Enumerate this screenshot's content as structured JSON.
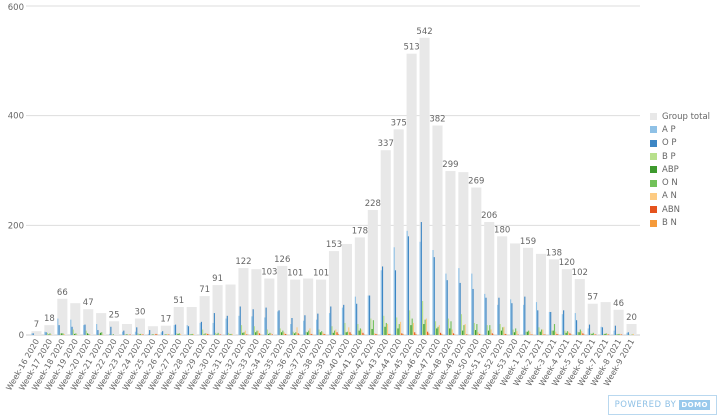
{
  "chart_data": {
    "type": "bar",
    "title": "",
    "xlabel": "",
    "ylabel": "",
    "ylim": [
      0,
      600
    ],
    "yticks": [
      0,
      200,
      400,
      600
    ],
    "grid": true,
    "legend_position": "right",
    "categories": [
      "Week-16 2020",
      "Week-17 2020",
      "Week-18 2020",
      "Week-19 2020",
      "Week-20 2020",
      "Week-21 2020",
      "Week-22 2020",
      "Week-23 2020",
      "Week-24 2020",
      "Week-25 2020",
      "Week-26 2020",
      "Week-27 2020",
      "Week-28 2020",
      "Week-29 2020",
      "Week-30 2020",
      "Week-31 2020",
      "Week-32 2020",
      "Week-33 2020",
      "Week-34 2020",
      "Week-35 2020",
      "Week-36 2020",
      "Week-37 2020",
      "Week-38 2020",
      "Week-39 2020",
      "Week-40 2020",
      "Week-41 2020",
      "Week-42 2020",
      "Week-43 2020",
      "Week-44 2020",
      "Week-45 2020",
      "Week-46 2020",
      "Week-47 2020",
      "Week-48 2020",
      "Week-49 2020",
      "Week-50 2020",
      "Week-51 2020",
      "Week-52 2020",
      "Week-53 2020",
      "Week-1 2021",
      "Week-2 2021",
      "Week-3 2021",
      "Week-4 2021",
      "Week-5 2021",
      "Week-6 2021",
      "Week-7 2021",
      "Week-8 2021",
      "Week-9 2021"
    ],
    "series": [
      {
        "name": "Group total",
        "color": "#e8e8e8",
        "values": [
          7,
          18,
          66,
          58,
          47,
          40,
          25,
          20,
          30,
          16,
          17,
          51,
          51,
          71,
          91,
          92,
          122,
          120,
          103,
          126,
          101,
          103,
          101,
          153,
          166,
          178,
          228,
          337,
          375,
          513,
          542,
          382,
          299,
          297,
          269,
          206,
          180,
          167,
          159,
          148,
          138,
          120,
          102,
          57,
          60,
          46,
          20
        ]
      },
      {
        "name": "A P",
        "color": "#8fc1e6",
        "values": [
          3,
          6,
          30,
          28,
          18,
          20,
          2,
          6,
          6,
          2,
          5,
          18,
          18,
          22,
          22,
          30,
          35,
          34,
          32,
          43,
          20,
          26,
          28,
          40,
          50,
          70,
          72,
          118,
          160,
          190,
          170,
          155,
          112,
          122,
          112,
          75,
          55,
          65,
          55,
          60,
          42,
          38,
          40,
          12,
          15,
          8,
          4
        ]
      },
      {
        "name": "O P",
        "color": "#3d86c4",
        "values": [
          3,
          5,
          18,
          15,
          19,
          9,
          15,
          8,
          14,
          9,
          7,
          19,
          16,
          24,
          40,
          35,
          52,
          47,
          50,
          45,
          31,
          36,
          39,
          52,
          55,
          57,
          72,
          125,
          118,
          180,
          206,
          142,
          100,
          95,
          84,
          68,
          68,
          58,
          70,
          45,
          42,
          45,
          27,
          19,
          14,
          17,
          5
        ]
      },
      {
        "name": "B P",
        "color": "#b8e08c",
        "values": [
          0,
          4,
          3,
          10,
          8,
          2,
          1,
          1,
          3,
          0,
          0,
          3,
          2,
          10,
          4,
          4,
          18,
          16,
          10,
          12,
          6,
          6,
          10,
          16,
          22,
          20,
          30,
          35,
          32,
          45,
          62,
          25,
          30,
          38,
          22,
          18,
          20,
          10,
          6,
          14,
          8,
          8,
          6,
          3,
          2,
          2,
          1
        ]
      },
      {
        "name": "ABP",
        "color": "#3e9a2e",
        "values": [
          0,
          1,
          3,
          2,
          3,
          4,
          1,
          1,
          1,
          1,
          1,
          2,
          1,
          1,
          1,
          1,
          4,
          5,
          2,
          5,
          3,
          5,
          5,
          4,
          5,
          8,
          11,
          15,
          12,
          18,
          20,
          12,
          12,
          8,
          9,
          8,
          8,
          5,
          6,
          6,
          8,
          4,
          5,
          2,
          2,
          1,
          0
        ]
      },
      {
        "name": "O N",
        "color": "#72c159",
        "values": [
          0,
          3,
          3,
          3,
          2,
          5,
          0,
          1,
          2,
          1,
          1,
          3,
          2,
          3,
          4,
          2,
          5,
          8,
          4,
          8,
          5,
          8,
          7,
          8,
          6,
          12,
          27,
          22,
          20,
          30,
          28,
          15,
          25,
          18,
          20,
          18,
          14,
          12,
          8,
          10,
          20,
          7,
          10,
          4,
          3,
          2,
          1
        ]
      },
      {
        "name": "A N",
        "color": "#fdcb82",
        "values": [
          0,
          1,
          2,
          1,
          1,
          1,
          0,
          1,
          2,
          1,
          2,
          2,
          2,
          3,
          2,
          2,
          8,
          8,
          3,
          5,
          14,
          12,
          5,
          10,
          14,
          10,
          3,
          20,
          24,
          22,
          30,
          18,
          10,
          20,
          5,
          10,
          15,
          7,
          6,
          10,
          6,
          6,
          7,
          2,
          2,
          2,
          2
        ]
      },
      {
        "name": "ABN",
        "color": "#e5531e",
        "values": [
          0,
          0,
          0,
          0,
          0,
          0,
          0,
          1,
          1,
          2,
          1,
          0,
          0,
          2,
          1,
          0,
          1,
          3,
          1,
          2,
          3,
          2,
          2,
          5,
          5,
          4,
          2,
          2,
          3,
          5,
          6,
          4,
          3,
          1,
          2,
          3,
          2,
          1,
          1,
          1,
          2,
          3,
          3,
          1,
          1,
          1,
          0
        ]
      },
      {
        "name": "B N",
        "color": "#f59a3a",
        "values": [
          0,
          0,
          0,
          0,
          0,
          0,
          0,
          0,
          0,
          1,
          0,
          0,
          0,
          1,
          0,
          0,
          1,
          1,
          0,
          1,
          1,
          1,
          1,
          2,
          2,
          1,
          1,
          2,
          2,
          2,
          3,
          2,
          1,
          1,
          1,
          1,
          1,
          0,
          1,
          1,
          1,
          1,
          1,
          0,
          0,
          0,
          0
        ]
      }
    ],
    "data_labels": [
      7,
      18,
      66,
      null,
      47,
      null,
      25,
      null,
      30,
      null,
      17,
      51,
      null,
      71,
      91,
      null,
      122,
      null,
      103,
      126,
      101,
      null,
      101,
      153,
      null,
      178,
      228,
      337,
      375,
      513,
      542,
      382,
      299,
      null,
      269,
      206,
      180,
      null,
      159,
      null,
      138,
      120,
      102,
      57,
      null,
      46,
      20
    ]
  },
  "badge": {
    "text": "POWERED BY",
    "logo": "DOMO"
  }
}
